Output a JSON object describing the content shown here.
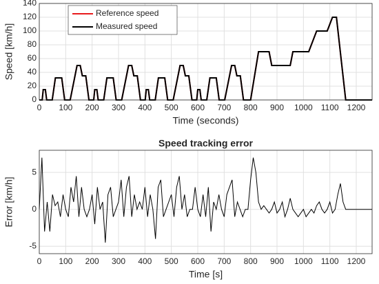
{
  "chart_data": [
    {
      "type": "line",
      "xlabel": "Time (seconds)",
      "ylabel": "Speed [km/h]",
      "x": [
        0,
        11,
        15,
        23,
        28,
        49,
        61,
        85,
        96,
        117,
        143,
        155,
        163,
        176,
        188,
        195,
        206,
        210,
        218,
        223,
        244,
        256,
        280,
        291,
        312,
        338,
        350,
        358,
        371,
        383,
        390,
        401,
        405,
        413,
        418,
        439,
        451,
        475,
        486,
        507,
        533,
        545,
        553,
        566,
        578,
        585,
        596,
        600,
        608,
        613,
        634,
        646,
        670,
        681,
        702,
        728,
        740,
        748,
        761,
        773,
        780,
        800,
        830,
        870,
        880,
        950,
        960,
        1020,
        1050,
        1090,
        1110,
        1125,
        1160,
        1260
      ],
      "series": [
        {
          "name": "Reference speed",
          "color": "#e8191c",
          "values": [
            0,
            0,
            15,
            15,
            0,
            0,
            32,
            32,
            0,
            0,
            50,
            50,
            35,
            35,
            0,
            0,
            0,
            15,
            15,
            0,
            0,
            32,
            32,
            0,
            0,
            50,
            50,
            35,
            35,
            0,
            0,
            0,
            15,
            15,
            0,
            0,
            32,
            32,
            0,
            0,
            50,
            50,
            35,
            35,
            0,
            0,
            0,
            15,
            15,
            0,
            0,
            32,
            32,
            0,
            0,
            50,
            50,
            35,
            35,
            0,
            0,
            0,
            70,
            70,
            50,
            50,
            70,
            70,
            100,
            100,
            120,
            120,
            0,
            0
          ]
        },
        {
          "name": "Measured speed",
          "color": "#000000",
          "values": [
            0,
            0,
            15,
            15,
            0,
            0,
            32,
            32,
            0,
            0,
            50,
            50,
            35,
            35,
            0,
            0,
            0,
            15,
            15,
            0,
            0,
            32,
            32,
            0,
            0,
            50,
            50,
            35,
            35,
            0,
            0,
            0,
            15,
            15,
            0,
            0,
            32,
            32,
            0,
            0,
            50,
            50,
            35,
            35,
            0,
            0,
            0,
            15,
            15,
            0,
            0,
            32,
            32,
            0,
            0,
            50,
            50,
            35,
            35,
            0,
            0,
            0,
            70,
            70,
            50,
            50,
            70,
            70,
            100,
            100,
            120,
            120,
            0,
            0
          ]
        }
      ],
      "xlim": [
        0,
        1260
      ],
      "xticks": [
        0,
        100,
        200,
        300,
        400,
        500,
        600,
        700,
        800,
        900,
        1000,
        1100,
        1200
      ],
      "ylim": [
        0,
        140
      ],
      "yticks": [
        0,
        20,
        40,
        60,
        80,
        100,
        120,
        140
      ],
      "grid": true,
      "legend": "upper-left"
    },
    {
      "type": "line",
      "title": "Speed tracking error",
      "xlabel": "Time [s]",
      "ylabel": "Error [km/h]",
      "x": [
        0,
        10,
        20,
        30,
        40,
        50,
        60,
        70,
        80,
        90,
        100,
        110,
        120,
        130,
        140,
        150,
        160,
        170,
        180,
        190,
        200,
        210,
        220,
        230,
        240,
        250,
        260,
        270,
        280,
        290,
        300,
        310,
        320,
        330,
        340,
        350,
        360,
        370,
        380,
        390,
        400,
        410,
        420,
        430,
        440,
        450,
        460,
        470,
        480,
        490,
        500,
        510,
        520,
        530,
        540,
        550,
        560,
        570,
        580,
        590,
        600,
        610,
        620,
        630,
        640,
        650,
        660,
        670,
        680,
        690,
        700,
        710,
        720,
        730,
        740,
        750,
        760,
        770,
        780,
        790,
        800,
        810,
        820,
        830,
        840,
        850,
        860,
        870,
        880,
        890,
        900,
        910,
        920,
        930,
        940,
        950,
        960,
        970,
        980,
        990,
        1000,
        1010,
        1020,
        1030,
        1040,
        1050,
        1060,
        1070,
        1080,
        1090,
        1100,
        1110,
        1120,
        1130,
        1140,
        1150,
        1160,
        1260
      ],
      "values": [
        0,
        7,
        -3,
        1,
        -3,
        2,
        0.5,
        1,
        -1,
        2,
        0,
        -1,
        3,
        1,
        4.5,
        -1,
        3,
        0,
        -1,
        0,
        2,
        -2,
        3,
        0,
        1,
        -4.5,
        2,
        3,
        -1,
        0,
        1,
        4,
        -1,
        3,
        4.5,
        -1,
        2,
        0,
        1,
        0,
        3,
        -1,
        2,
        0,
        -4,
        3,
        4,
        -1,
        0,
        1,
        2,
        -1,
        3,
        4.5,
        0,
        2,
        -1,
        0,
        0,
        3,
        0,
        -1,
        2,
        -1,
        3,
        -3,
        1,
        0,
        2,
        0,
        -1,
        2,
        3,
        4,
        -1,
        1,
        0,
        -1,
        0,
        0,
        4,
        7,
        5,
        1,
        0,
        0.5,
        0,
        -0.5,
        0,
        1,
        -0.5,
        0,
        1,
        -1,
        0,
        1.5,
        0,
        -0.5,
        -1,
        -0.5,
        0,
        -1,
        -0.5,
        0,
        -0.5,
        0.5,
        1,
        0,
        -0.5,
        0,
        1,
        -0.5,
        0,
        2,
        3.5,
        1,
        0,
        0
      ],
      "color": "#000000",
      "xlim": [
        0,
        1260
      ],
      "xticks": [
        0,
        100,
        200,
        300,
        400,
        500,
        600,
        700,
        800,
        900,
        1000,
        1100,
        1200
      ],
      "ylim": [
        -6,
        8
      ],
      "yticks": [
        -5,
        0,
        5
      ],
      "grid": true
    }
  ]
}
